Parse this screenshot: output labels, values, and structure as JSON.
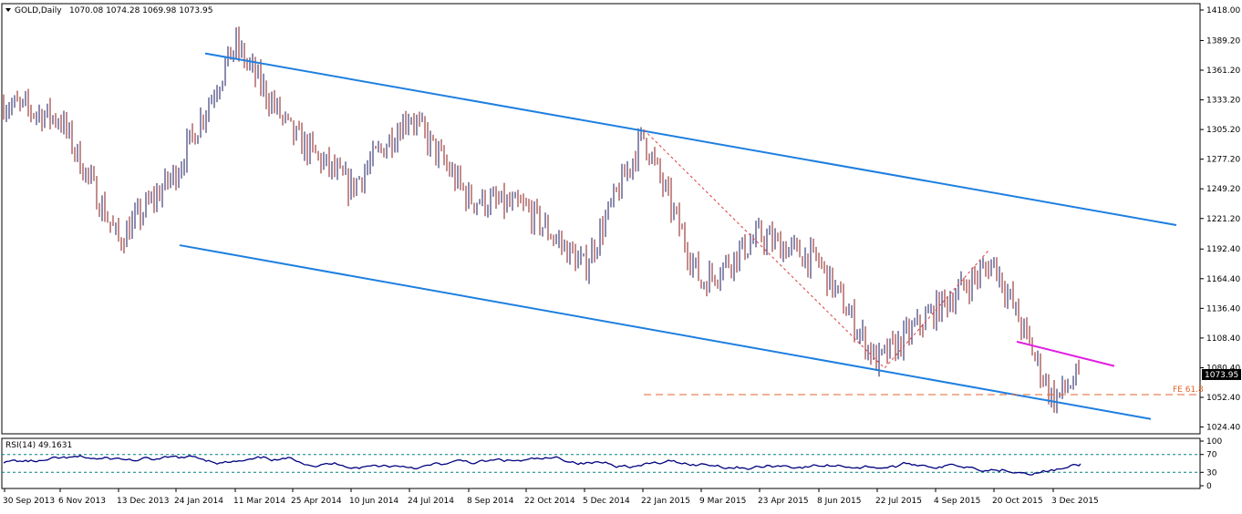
{
  "header": {
    "symbol_label": "GOLD,Daily",
    "ohlc": "1070.08 1074.28 1069.98 1073.95"
  },
  "rsi": {
    "label": "RSI(14) 49.1631",
    "levels": [
      "100",
      "70",
      "30",
      "0"
    ],
    "level_values": [
      100,
      70,
      30,
      0
    ],
    "line_color": "#000080"
  },
  "colors": {
    "channel": "#1e7fe0",
    "fib_dashed": "#e03c3c",
    "fe_level": "#e0642c",
    "resistance": "#e020e0",
    "candles": "#1a1a60",
    "candles_bear": "#8b1a1a",
    "grid_dash": "#008080"
  },
  "price_axis": {
    "ticks": [
      "1418.00",
      "1389.20",
      "1361.20",
      "1333.20",
      "1305.20",
      "1277.20",
      "1249.20",
      "1221.20",
      "1192.40",
      "1164.40",
      "1136.40",
      "1108.40",
      "1080.40",
      "1052.40",
      "1024.40"
    ],
    "tick_values": [
      1418.0,
      1389.2,
      1361.2,
      1333.2,
      1305.2,
      1277.2,
      1249.2,
      1221.2,
      1192.4,
      1164.4,
      1136.4,
      1108.4,
      1080.4,
      1052.4,
      1024.4
    ],
    "current_price_label": "1073.95",
    "current_price": 1073.95
  },
  "annotations": {
    "fe_label": "FE 61.8",
    "fe_price": 1055.0
  },
  "chart_data": {
    "type": "candlestick",
    "symbol": "GOLD",
    "timeframe": "Daily",
    "x_ticks": [
      "30 Sep 2013",
      "6 Nov 2013",
      "13 Dec 2013",
      "24 Jan 2014",
      "11 Mar 2014",
      "25 Apr 2014",
      "10 Jun 2014",
      "24 Jul 2014",
      "8 Sep 2014",
      "22 Oct 2014",
      "5 Dec 2014",
      "22 Jan 2015",
      "9 Mar 2015",
      "23 Apr 2015",
      "8 Jun 2015",
      "22 Jul 2015",
      "4 Sep 2015",
      "20 Oct 2015",
      "3 Dec 2015"
    ],
    "ylim": [
      1018,
      1424
    ],
    "last_candle": {
      "open": 1070.08,
      "high": 1074.28,
      "low": 1069.98,
      "close": 1073.95
    },
    "swing_path": [
      [
        "30 Sep 2013",
        1330
      ],
      [
        "6 Nov 2013",
        1315
      ],
      [
        "13 Dec 2013",
        1200
      ],
      [
        "24 Jan 2014",
        1265
      ],
      [
        "11 Mar 2014",
        1385
      ],
      [
        "25 Apr 2014",
        1300
      ],
      [
        "10 Jun 2014",
        1250
      ],
      [
        "24 Jul 2014",
        1320
      ],
      [
        "8 Sep 2014",
        1240
      ],
      [
        "22 Oct 2014",
        1230
      ],
      [
        "5 Dec 2014",
        1175
      ],
      [
        "22 Jan 2015",
        1300
      ],
      [
        "9 Mar 2015",
        1160
      ],
      [
        "23 Apr 2015",
        1205
      ],
      [
        "8 Jun 2015",
        1180
      ],
      [
        "22 Jul 2015",
        1085
      ],
      [
        "4 Sep 2015",
        1135
      ],
      [
        "20 Oct 2015",
        1180
      ],
      [
        "3 Dec 2015",
        1050
      ]
    ],
    "rsi_last": 49.1631
  }
}
